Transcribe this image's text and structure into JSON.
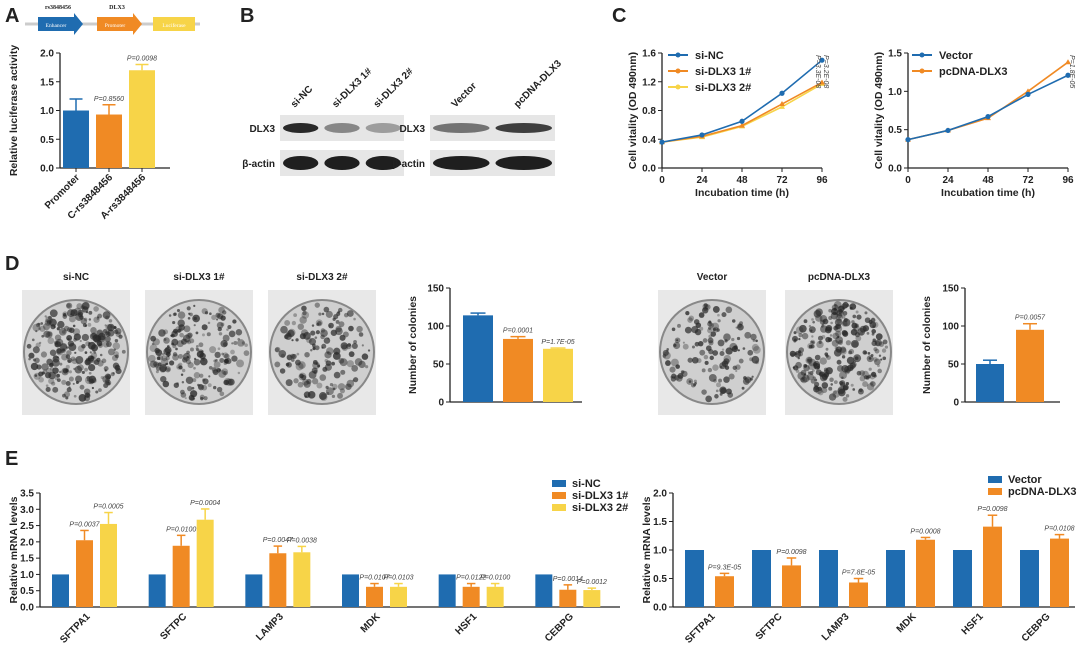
{
  "colors": {
    "blue": "#1f6cb0",
    "orange": "#f08a24",
    "yellow": "#f7d448"
  },
  "panels": {
    "a": "A",
    "b": "B",
    "c": "C",
    "d": "D",
    "e": "E"
  },
  "construct": {
    "top_labels": [
      "rs3848456",
      "DLX3"
    ],
    "elements": [
      "Enhancer",
      "Promoter",
      "Luciferase"
    ]
  },
  "blot": {
    "left_lanes": [
      "si-NC",
      "si-DLX3 1#",
      "si-DLX3 2#"
    ],
    "right_lanes": [
      "Vector",
      "pcDNA-DLX3"
    ],
    "rows": [
      "DLX3",
      "β-actin"
    ],
    "dlx3_left_intensity": [
      0.9,
      0.45,
      0.35
    ],
    "dlx3_right_intensity": [
      0.55,
      0.8
    ]
  },
  "colony_labels": {
    "left": [
      "si-NC",
      "si-DLX3 1#",
      "si-DLX3 2#"
    ],
    "right": [
      "Vector",
      "pcDNA-DLX3"
    ]
  },
  "chart_data": [
    {
      "id": "A",
      "type": "bar",
      "categories": [
        "Promoter",
        "C-rs3848456",
        "A-rs3848456"
      ],
      "values": [
        1.0,
        0.93,
        1.7
      ],
      "errors": [
        0.2,
        0.17,
        0.1
      ],
      "annotations": [
        "",
        "P=0.8560",
        "P=0.0098"
      ],
      "ylabel": "Relative luciferase activity",
      "ylim": [
        0,
        2.0
      ],
      "yticks": [
        "0.0",
        "0.5",
        "1.0",
        "1.5",
        "2.0"
      ]
    },
    {
      "id": "C-left",
      "type": "line",
      "x": [
        0,
        24,
        48,
        72,
        96
      ],
      "xticks": [
        "0",
        "24",
        "48",
        "72",
        "96"
      ],
      "xlabel": "Incubation time (h)",
      "ylabel": "Cell vitality (OD 490nm)",
      "ylim": [
        0,
        1.6
      ],
      "yticks": [
        "0.0",
        "0.4",
        "0.8",
        "1.2",
        "1.6"
      ],
      "legend": "top-left",
      "series": [
        {
          "name": "si-NC",
          "values": [
            0.36,
            0.46,
            0.65,
            1.04,
            1.5
          ]
        },
        {
          "name": "si-DLX3 1#",
          "values": [
            0.36,
            0.44,
            0.59,
            0.89,
            1.19
          ]
        },
        {
          "name": "si-DLX3 2#",
          "values": [
            0.36,
            0.43,
            0.58,
            0.85,
            1.17
          ]
        }
      ],
      "annotations": [
        "P=3.3E-08",
        "P=3.2E-08"
      ]
    },
    {
      "id": "C-right",
      "type": "line",
      "x": [
        0,
        24,
        48,
        72,
        96
      ],
      "xticks": [
        "0",
        "24",
        "48",
        "72",
        "96"
      ],
      "xlabel": "Incubation time (h)",
      "ylabel": "Cell vitality (OD 490nm)",
      "ylim": [
        0,
        1.5
      ],
      "yticks": [
        "0.0",
        "0.5",
        "1.0",
        "1.5"
      ],
      "legend": "top-left",
      "series": [
        {
          "name": "Vector",
          "values": [
            0.37,
            0.49,
            0.67,
            0.96,
            1.21
          ]
        },
        {
          "name": "pcDNA-DLX3",
          "values": [
            0.37,
            0.49,
            0.65,
            1.0,
            1.38
          ]
        }
      ],
      "annotations": [
        "P=1.8E-05"
      ]
    },
    {
      "id": "D-left",
      "type": "bar",
      "categories": [
        "si-NC",
        "si-DLX3 1#",
        "si-DLX3 2#"
      ],
      "values": [
        114,
        83,
        70
      ],
      "errors": [
        3,
        3,
        1
      ],
      "annotations": [
        "",
        "P=0.0001",
        "P=1.7E-05"
      ],
      "ylabel": "Number of colonies",
      "ylim": [
        0,
        150
      ],
      "yticks": [
        "0",
        "50",
        "100",
        "150"
      ]
    },
    {
      "id": "D-right",
      "type": "bar",
      "categories": [
        "Vector",
        "pcDNA-DLX3"
      ],
      "values": [
        50,
        95
      ],
      "errors": [
        5,
        8
      ],
      "annotations": [
        "",
        "P=0.0057"
      ],
      "ylabel": "Number of colonies",
      "ylim": [
        0,
        150
      ],
      "yticks": [
        "0",
        "50",
        "100",
        "150"
      ]
    },
    {
      "id": "E-left",
      "type": "bar",
      "categories": [
        "SFTPA1",
        "SFTPC",
        "LAMP3",
        "MDK",
        "HSF1",
        "CEBPG"
      ],
      "ylabel": "Relative mRNA levels",
      "ylim": [
        0,
        3.5
      ],
      "yticks": [
        "0.0",
        "0.5",
        "1.0",
        "1.5",
        "2.0",
        "2.5",
        "3.0",
        "3.5"
      ],
      "legend": "top-right",
      "series": [
        {
          "name": "si-NC",
          "values": [
            1,
            1,
            1,
            1,
            1,
            1
          ],
          "errors": [
            0,
            0,
            0,
            0,
            0,
            0
          ],
          "annotations": [
            "",
            "",
            "",
            "",
            "",
            ""
          ]
        },
        {
          "name": "si-DLX3 1#",
          "values": [
            2.05,
            1.88,
            1.65,
            0.62,
            0.62,
            0.53
          ],
          "errors": [
            0.3,
            0.32,
            0.22,
            0.1,
            0.1,
            0.15
          ],
          "annotations": [
            "P=0.0037",
            "P=0.0100",
            "P=0.0047",
            "P=0.0107",
            "P=0.0122",
            "P=0.0014"
          ]
        },
        {
          "name": "si-DLX3 2#",
          "values": [
            2.55,
            2.68,
            1.68,
            0.62,
            0.62,
            0.52
          ],
          "errors": [
            0.35,
            0.33,
            0.18,
            0.1,
            0.1,
            0.06
          ],
          "annotations": [
            "P=0.0005",
            "P=0.0004",
            "P=0.0038",
            "P=0.0103",
            "P=0.0100",
            "P=0.0012"
          ]
        }
      ]
    },
    {
      "id": "E-right",
      "type": "bar",
      "categories": [
        "SFTPA1",
        "SFTPC",
        "LAMP3",
        "MDK",
        "HSF1",
        "CEBPG"
      ],
      "ylabel": "Relative mRNA levels",
      "ylim": [
        0,
        2.0
      ],
      "yticks": [
        "0.0",
        "0.5",
        "1.0",
        "1.5",
        "2.0"
      ],
      "legend": "top-right",
      "series": [
        {
          "name": "Vector",
          "values": [
            1,
            1,
            1,
            1,
            1,
            1
          ],
          "errors": [
            0,
            0,
            0,
            0,
            0,
            0
          ],
          "annotations": [
            "",
            "",
            "",
            "",
            "",
            ""
          ]
        },
        {
          "name": "pcDNA-DLX3",
          "values": [
            0.54,
            0.73,
            0.43,
            1.18,
            1.41,
            1.2
          ],
          "errors": [
            0.05,
            0.13,
            0.07,
            0.04,
            0.2,
            0.07
          ],
          "annotations": [
            "P=9.3E-05",
            "P=0.0098",
            "P=7.8E-05",
            "P=0.0008",
            "P=0.0098",
            "P=0.0108"
          ]
        }
      ]
    }
  ]
}
